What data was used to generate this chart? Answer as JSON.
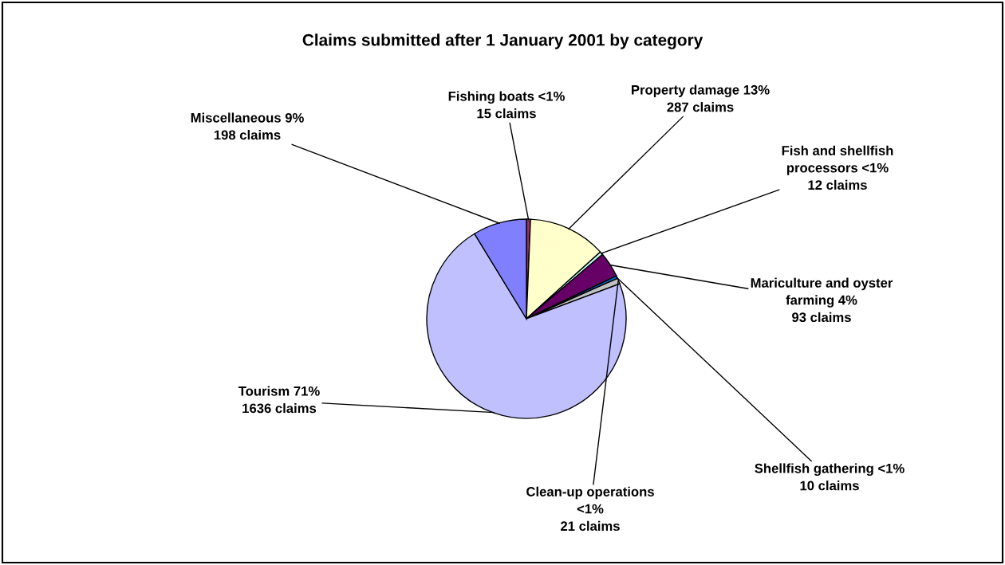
{
  "chart_data": {
    "type": "pie",
    "title": "Claims submitted after 1 January 2001 by category",
    "categories": [
      "Fishing boats <1%",
      "Property damage 13%",
      "Fish and shellfish\nprocessors <1%",
      "Mariculture and oyster\nfarming 4%",
      "Shellfish gathering <1%",
      "Clean-up operations\n<1%",
      "Tourism 71%",
      "Miscellaneous 9%"
    ],
    "values": [
      15,
      287,
      12,
      93,
      10,
      21,
      1636,
      198
    ],
    "value_labels": [
      "15 claims",
      "287 claims",
      "12 claims",
      "93 claims",
      "10 claims",
      "21 claims",
      "1636 claims",
      "198 claims"
    ],
    "colors": [
      "#993366",
      "#ffffcc",
      "#ccffff",
      "#660066",
      "#0066cc",
      "#c0c0c0",
      "#c0c0ff",
      "#8080ff"
    ]
  }
}
